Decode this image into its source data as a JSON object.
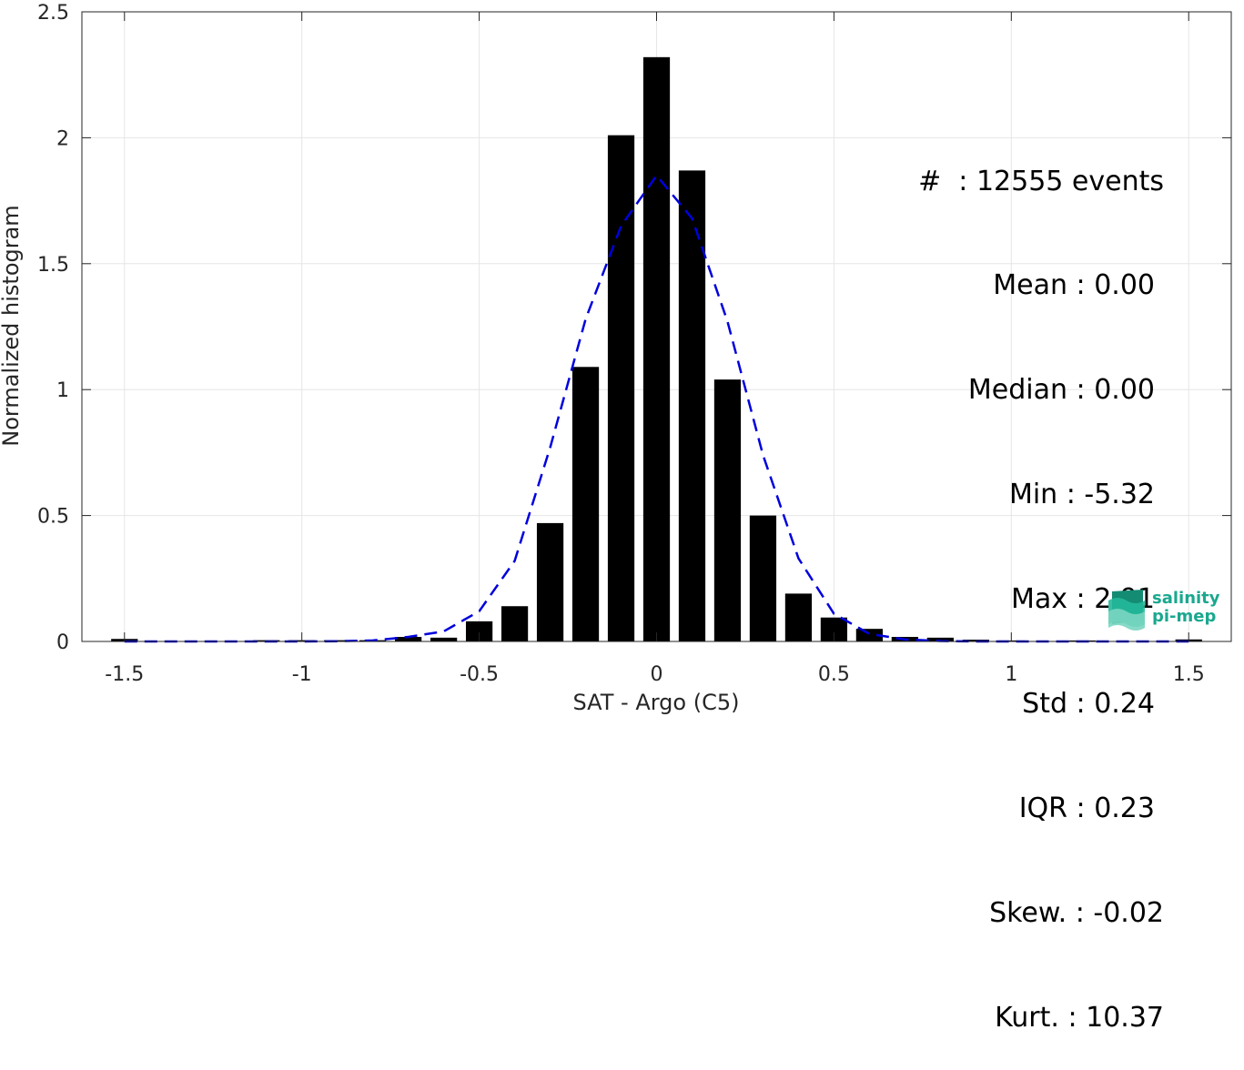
{
  "chart_data": {
    "type": "bar",
    "xlabel": "SAT - Argo (C5)",
    "ylabel": "Normalized histogram",
    "xlim": [
      -1.62,
      1.62
    ],
    "ylim": [
      0,
      2.5
    ],
    "xticks": [
      -1.5,
      -1,
      -0.5,
      0,
      0.5,
      1,
      1.5
    ],
    "xtick_labels": [
      "-1.5",
      "-1",
      "-0.5",
      "0",
      "0.5",
      "1",
      "1.5"
    ],
    "yticks": [
      0,
      0.5,
      1,
      1.5,
      2,
      2.5
    ],
    "ytick_labels": [
      "0",
      "0.5",
      "1",
      "1.5",
      "2",
      "2.5"
    ],
    "grid": true,
    "bar_width": 0.075,
    "bar_color": "#000000",
    "bars": {
      "x": [
        -1.5,
        -1.4,
        -1.3,
        -1.2,
        -1.1,
        -1.0,
        -0.9,
        -0.8,
        -0.7,
        -0.6,
        -0.5,
        -0.4,
        -0.3,
        -0.2,
        -0.1,
        0.0,
        0.1,
        0.2,
        0.3,
        0.4,
        0.5,
        0.6,
        0.7,
        0.8,
        0.9,
        1.0,
        1.1,
        1.2,
        1.3,
        1.4,
        1.5
      ],
      "values": [
        0.01,
        0.0,
        0.0,
        0.0,
        0.005,
        0.005,
        0.005,
        0.005,
        0.018,
        0.015,
        0.08,
        0.14,
        0.47,
        1.09,
        2.01,
        2.32,
        1.87,
        1.04,
        0.5,
        0.19,
        0.095,
        0.05,
        0.018,
        0.015,
        0.007,
        0.004,
        0.0,
        0.004,
        0.0,
        0.0,
        0.008
      ]
    },
    "fit": {
      "style": "dashed",
      "color": "#0000dd",
      "x": [
        -1.5,
        -1.4,
        -1.3,
        -1.2,
        -1.1,
        -1.0,
        -0.9,
        -0.8,
        -0.7,
        -0.6,
        -0.5,
        -0.4,
        -0.3,
        -0.2,
        -0.1,
        0.0,
        0.1,
        0.2,
        0.3,
        0.4,
        0.5,
        0.6,
        0.7,
        0.8,
        0.9,
        1.0,
        1.1,
        1.2,
        1.3,
        1.4,
        1.5
      ],
      "values": [
        0.0,
        0.0,
        0.0,
        0.0,
        0.0,
        0.0,
        0.001,
        0.004,
        0.018,
        0.04,
        0.12,
        0.32,
        0.77,
        1.28,
        1.65,
        1.85,
        1.68,
        1.27,
        0.74,
        0.33,
        0.11,
        0.03,
        0.008,
        0.002,
        0.0,
        0.0,
        0.0,
        0.0,
        0.0,
        0.0,
        0.0
      ]
    }
  },
  "stats": [
    "#  : 12555 events",
    "Mean : 0.00",
    "Median : 0.00",
    "Min : -5.32",
    "Max : 2.91",
    "Std : 0.24",
    "IQR : 0.23",
    "Skew. : -0.02",
    "Kurt. : 10.37"
  ],
  "logo": {
    "line1": "salinity",
    "line2": "pi-mep",
    "color": "#1aa88f"
  }
}
